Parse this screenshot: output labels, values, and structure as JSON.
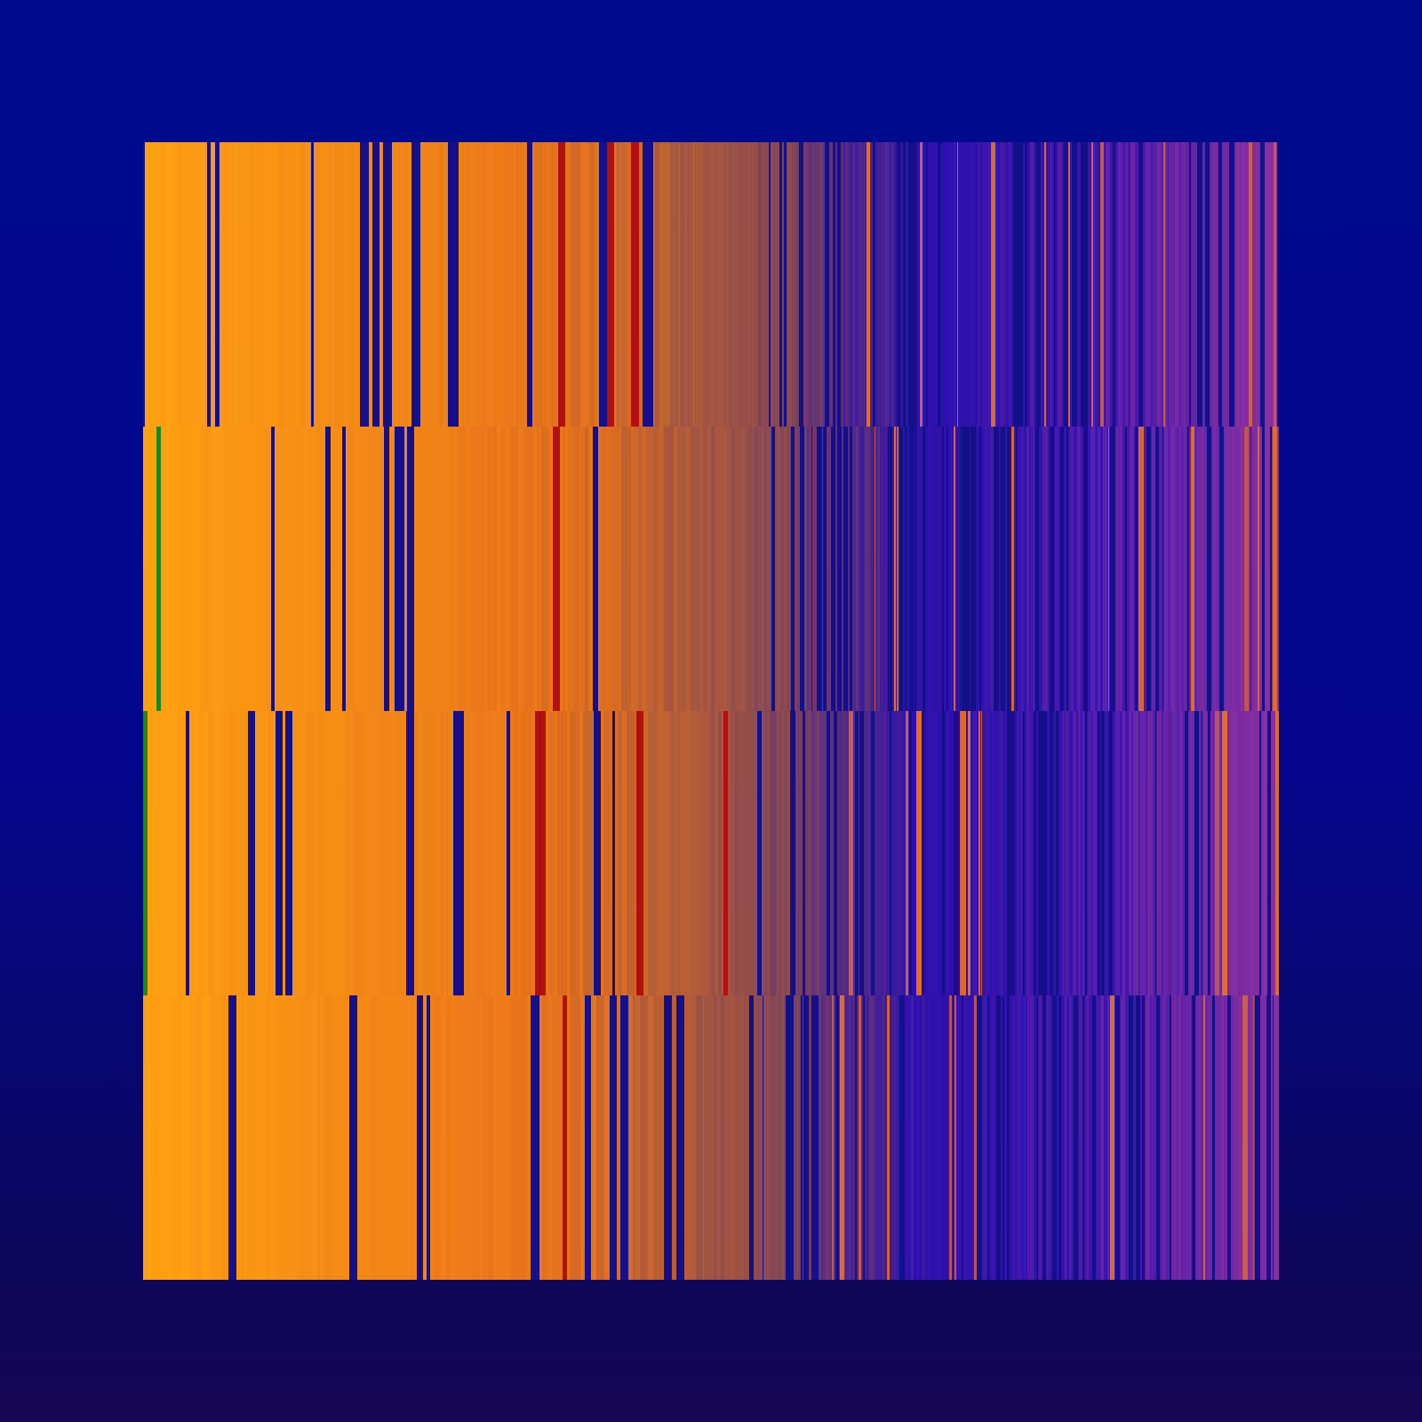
{
  "palette": {
    "background_top": "#000a8a",
    "background_bottom": "#150650",
    "warm_left": "#ffa012",
    "warm_mid": "#e8731a",
    "transition": "#8a4a50",
    "cool": "#2a10b0",
    "violet_right": "#8a30a0",
    "gap": "#14108a",
    "accent_green": "#1a8a1a",
    "accent_red": "#b01010"
  }
}
